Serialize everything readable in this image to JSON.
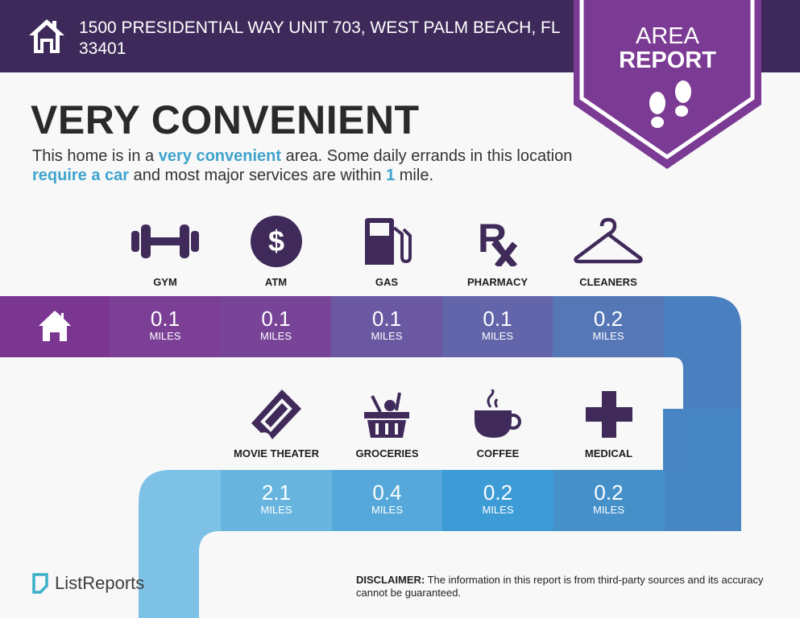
{
  "header": {
    "address": "1500 PRESIDENTIAL WAY UNIT 703, WEST PALM BEACH, FL 33401",
    "icon": "house-icon"
  },
  "badge": {
    "line1": "AREA",
    "line2": "REPORT",
    "icon": "footprints-icon",
    "color": "#7b3a93"
  },
  "title": "VERY CONVENIENT",
  "description": {
    "p1": "This home is in a ",
    "h1": "very convenient",
    "p2": " area. Some daily errands in this location ",
    "h2": "require a car",
    "p3": " and most major services are within ",
    "h3": "1",
    "p4": " mile."
  },
  "row1": [
    {
      "label": "GYM",
      "icon": "dumbbell-icon",
      "distance": "0.1",
      "unit": "MILES"
    },
    {
      "label": "ATM",
      "icon": "dollar-icon",
      "distance": "0.1",
      "unit": "MILES"
    },
    {
      "label": "GAS",
      "icon": "gas-pump-icon",
      "distance": "0.1",
      "unit": "MILES"
    },
    {
      "label": "PHARMACY",
      "icon": "rx-icon",
      "distance": "0.1",
      "unit": "MILES"
    },
    {
      "label": "CLEANERS",
      "icon": "hanger-icon",
      "distance": "0.2",
      "unit": "MILES"
    }
  ],
  "row2": [
    {
      "label": "MOVIE THEATER",
      "icon": "ticket-icon",
      "distance": "2.1",
      "unit": "MILES"
    },
    {
      "label": "GROCERIES",
      "icon": "basket-icon",
      "distance": "0.4",
      "unit": "MILES"
    },
    {
      "label": "COFFEE",
      "icon": "coffee-cup-icon",
      "distance": "0.2",
      "unit": "MILES"
    },
    {
      "label": "MEDICAL",
      "icon": "medical-cross-icon",
      "distance": "0.2",
      "unit": "MILES"
    }
  ],
  "footer": {
    "logo": "ListReports",
    "disclaimer_label": "DISCLAIMER:",
    "disclaimer": " The information in this report is from third-party sources and its accuracy cannot be guaranteed."
  }
}
